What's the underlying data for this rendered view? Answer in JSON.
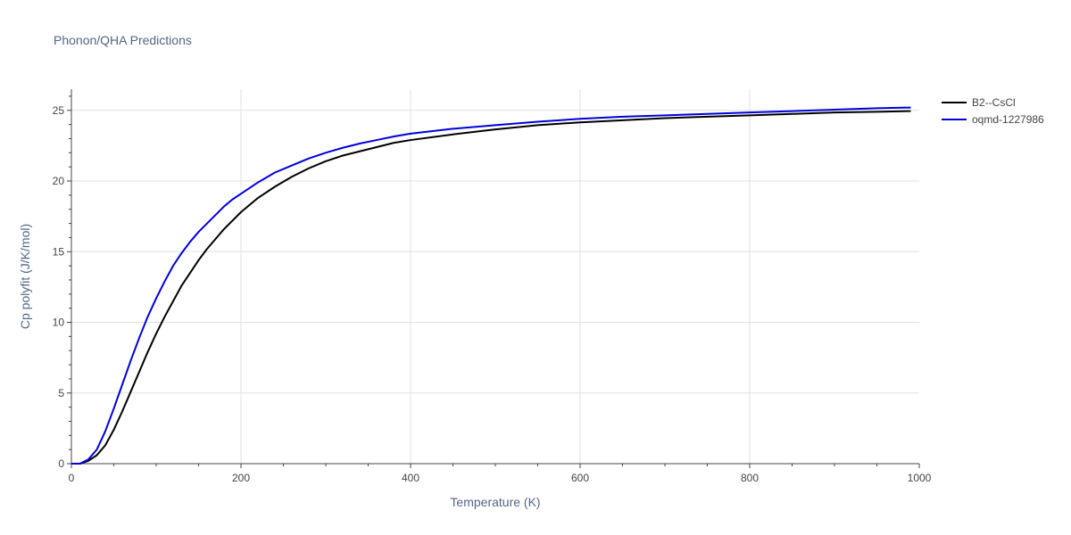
{
  "chart_data": {
    "type": "line",
    "title": "Phonon/QHA Predictions",
    "xlabel": "Temperature (K)",
    "ylabel": "Cp polyfit (J/K/mol)",
    "xlim": [
      0,
      1000
    ],
    "ylim": [
      0,
      26.5
    ],
    "x_ticks": [
      0,
      200,
      400,
      600,
      800,
      1000
    ],
    "y_ticks": [
      0,
      5,
      10,
      15,
      20,
      25
    ],
    "grid": true,
    "legend_position": "top-right",
    "series": [
      {
        "name": "B2--CsCl",
        "color": "#000000",
        "x": [
          0,
          10,
          20,
          30,
          40,
          50,
          60,
          70,
          80,
          90,
          100,
          110,
          120,
          130,
          140,
          150,
          160,
          170,
          180,
          190,
          200,
          220,
          240,
          260,
          280,
          300,
          320,
          340,
          360,
          380,
          400,
          450,
          500,
          550,
          600,
          650,
          700,
          750,
          800,
          850,
          900,
          950,
          990
        ],
        "y": [
          0,
          0,
          0.2,
          0.6,
          1.3,
          2.4,
          3.7,
          5.1,
          6.5,
          7.9,
          9.2,
          10.4,
          11.5,
          12.6,
          13.5,
          14.4,
          15.2,
          15.9,
          16.6,
          17.2,
          17.8,
          18.8,
          19.6,
          20.3,
          20.9,
          21.4,
          21.8,
          22.1,
          22.4,
          22.7,
          22.9,
          23.3,
          23.65,
          23.95,
          24.15,
          24.3,
          24.45,
          24.55,
          24.65,
          24.75,
          24.85,
          24.9,
          24.95
        ]
      },
      {
        "name": "oqmd-1227986",
        "color": "#0000dd",
        "x": [
          0,
          10,
          20,
          30,
          40,
          50,
          60,
          70,
          80,
          90,
          100,
          110,
          120,
          130,
          140,
          150,
          160,
          170,
          180,
          190,
          200,
          220,
          240,
          260,
          280,
          300,
          320,
          340,
          360,
          380,
          400,
          450,
          500,
          550,
          600,
          650,
          700,
          750,
          800,
          850,
          900,
          950,
          990
        ],
        "y": [
          0,
          0,
          0.3,
          1.0,
          2.3,
          3.9,
          5.6,
          7.3,
          8.9,
          10.4,
          11.7,
          12.9,
          14.0,
          14.9,
          15.7,
          16.4,
          17.0,
          17.6,
          18.2,
          18.7,
          19.1,
          19.9,
          20.6,
          21.1,
          21.6,
          22.0,
          22.35,
          22.65,
          22.9,
          23.15,
          23.35,
          23.7,
          23.95,
          24.2,
          24.4,
          24.55,
          24.65,
          24.75,
          24.85,
          24.95,
          25.05,
          25.15,
          25.2
        ]
      }
    ]
  }
}
